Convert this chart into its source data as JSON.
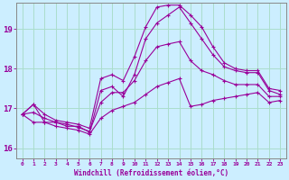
{
  "xlabel": "Windchill (Refroidissement éolien,°C)",
  "ylabel": "",
  "background_color": "#cceeff",
  "grid_color": "#aaddcc",
  "line_color": "#990099",
  "spine_color": "#888888",
  "xlim": [
    -0.5,
    23.5
  ],
  "ylim": [
    15.75,
    19.65
  ],
  "yticks": [
    16,
    17,
    18,
    19
  ],
  "xticks": [
    0,
    1,
    2,
    3,
    4,
    5,
    6,
    7,
    8,
    9,
    10,
    11,
    12,
    13,
    14,
    15,
    16,
    17,
    18,
    19,
    20,
    21,
    22,
    23
  ],
  "hours": [
    0,
    1,
    2,
    3,
    4,
    5,
    6,
    7,
    8,
    9,
    10,
    11,
    12,
    13,
    14,
    15,
    16,
    17,
    18,
    19,
    20,
    21,
    22,
    23
  ],
  "temp": [
    16.85,
    17.1,
    16.65,
    16.65,
    16.55,
    16.55,
    16.4,
    17.45,
    17.55,
    17.3,
    17.85,
    18.75,
    19.15,
    19.35,
    19.55,
    19.15,
    18.75,
    18.35,
    18.05,
    17.95,
    17.9,
    17.9,
    17.45,
    17.35
  ],
  "wc_min": [
    16.85,
    16.65,
    16.65,
    16.55,
    16.5,
    16.45,
    16.35,
    16.75,
    16.95,
    17.05,
    17.15,
    17.35,
    17.55,
    17.65,
    17.75,
    17.05,
    17.1,
    17.2,
    17.25,
    17.3,
    17.35,
    17.4,
    17.15,
    17.2
  ],
  "wc_max": [
    16.85,
    17.1,
    16.85,
    16.7,
    16.65,
    16.6,
    16.5,
    17.75,
    17.85,
    17.7,
    18.3,
    19.05,
    19.55,
    19.6,
    19.6,
    19.35,
    19.05,
    18.55,
    18.15,
    18.0,
    17.95,
    17.95,
    17.5,
    17.45
  ],
  "wc_avg": [
    16.85,
    16.9,
    16.75,
    16.65,
    16.6,
    16.52,
    16.42,
    17.15,
    17.4,
    17.4,
    17.7,
    18.2,
    18.55,
    18.62,
    18.68,
    18.2,
    17.95,
    17.85,
    17.7,
    17.6,
    17.6,
    17.6,
    17.3,
    17.3
  ]
}
